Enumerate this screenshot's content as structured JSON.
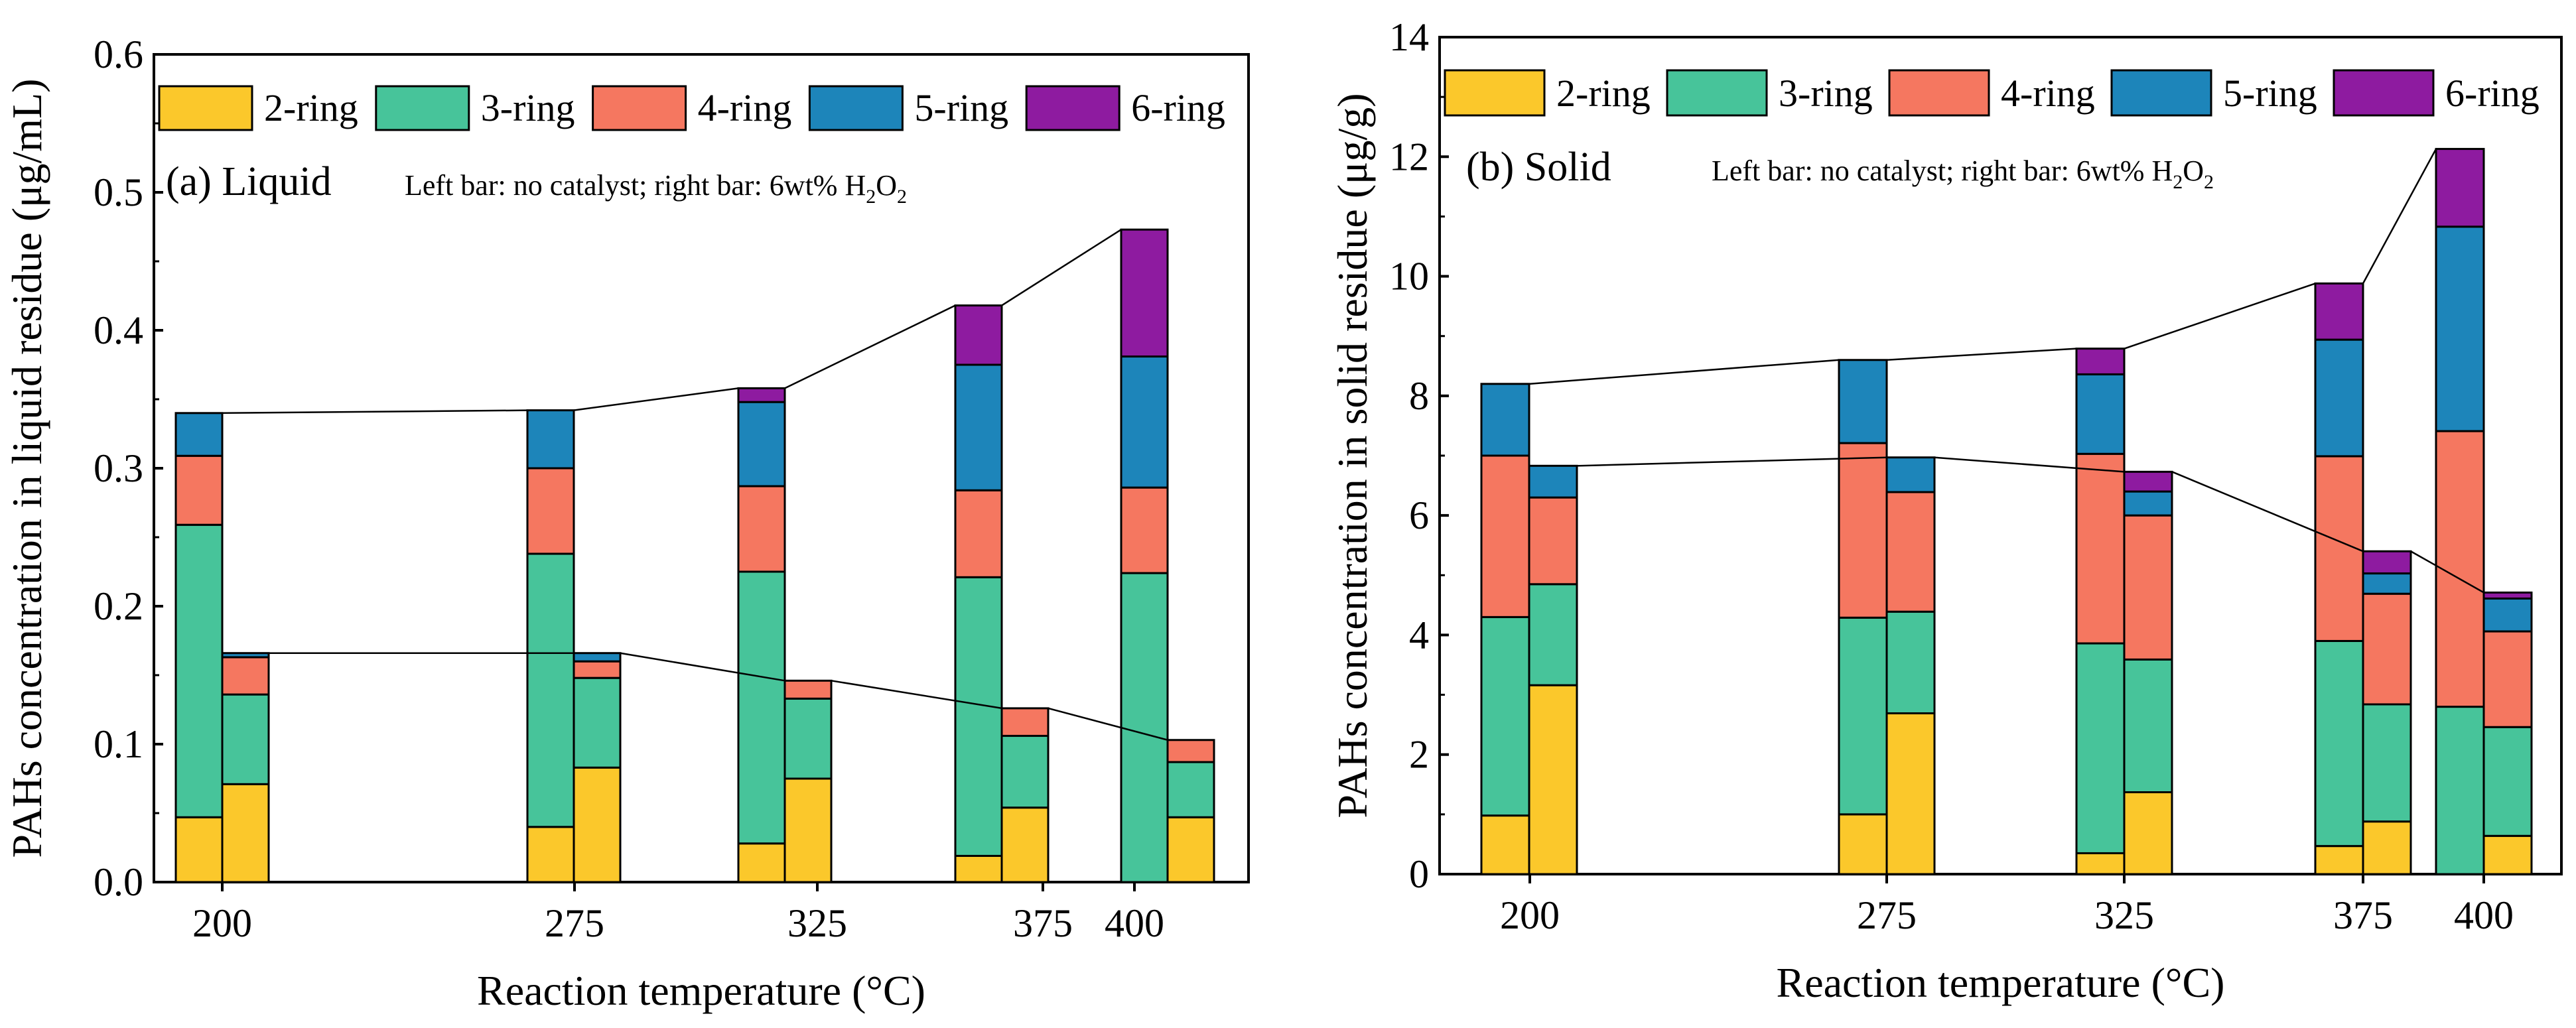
{
  "legend": [
    {
      "key": "r2",
      "label": "2-ring",
      "color": "#FBC82B"
    },
    {
      "key": "r3",
      "label": "3-ring",
      "color": "#47C49A"
    },
    {
      "key": "r4",
      "label": "4-ring",
      "color": "#F57760"
    },
    {
      "key": "r5",
      "label": "5-ring",
      "color": "#1D85BA"
    },
    {
      "key": "r6",
      "label": "6-ring",
      "color": "#8E1BA0"
    }
  ],
  "chart_data": [
    {
      "type": "bar",
      "stacked": true,
      "panel_label": "(a)",
      "panel_name": "Liquid",
      "note_prefix": "Left bar: no catalyst;   right bar: 6wt% H",
      "note_sub1": "2",
      "note_mid": "O",
      "note_sub2": "2",
      "xlabel": "Reaction temperature (°C)",
      "ylabel": "PAHs concentration in liquid residue (μg/mL)",
      "ylim": [
        0,
        0.6
      ],
      "yticks": [
        0.0,
        0.1,
        0.2,
        0.3,
        0.4,
        0.5,
        0.6
      ],
      "ytick_labels": [
        "0.0",
        "0.1",
        "0.2",
        "0.3",
        "0.4",
        "0.5",
        "0.6"
      ],
      "categories": [
        "200",
        "275",
        "325",
        "375",
        "400"
      ],
      "series_order": [
        "r2",
        "r3",
        "r4",
        "r5",
        "r6"
      ],
      "bars": [
        {
          "temperature": "200",
          "condition": "no catalyst",
          "values": [
            0.047,
            0.212,
            0.05,
            0.031,
            0.0
          ]
        },
        {
          "temperature": "200",
          "condition": "6wt% H2O2",
          "values": [
            0.071,
            0.065,
            0.027,
            0.003,
            0.0
          ]
        },
        {
          "temperature": "275",
          "condition": "no catalyst",
          "values": [
            0.04,
            0.198,
            0.062,
            0.042,
            0.0
          ]
        },
        {
          "temperature": "275",
          "condition": "6wt% H2O2",
          "values": [
            0.083,
            0.065,
            0.012,
            0.006,
            0.0
          ]
        },
        {
          "temperature": "325",
          "condition": "no catalyst",
          "values": [
            0.028,
            0.197,
            0.062,
            0.061,
            0.01
          ]
        },
        {
          "temperature": "325",
          "condition": "6wt% H2O2",
          "values": [
            0.075,
            0.058,
            0.013,
            0.0,
            0.0
          ]
        },
        {
          "temperature": "375",
          "condition": "no catalyst",
          "values": [
            0.019,
            0.202,
            0.063,
            0.091,
            0.043
          ]
        },
        {
          "temperature": "375",
          "condition": "6wt% H2O2",
          "values": [
            0.054,
            0.052,
            0.02,
            0.0,
            0.0
          ]
        },
        {
          "temperature": "400",
          "condition": "no catalyst",
          "values": [
            0.0,
            0.224,
            0.062,
            0.095,
            0.092
          ]
        },
        {
          "temperature": "400",
          "condition": "6wt% H2O2",
          "values": [
            0.047,
            0.04,
            0.016,
            0.0,
            0.0
          ]
        }
      ]
    },
    {
      "type": "bar",
      "stacked": true,
      "panel_label": "(b)",
      "panel_name": "Solid",
      "note_prefix": "Left bar: no catalyst;   right bar: 6wt% H",
      "note_sub1": "2",
      "note_mid": "O",
      "note_sub2": "2",
      "xlabel": "Reaction temperature (°C)",
      "ylabel": "PAHs concentration in solid residue (μg/g)",
      "ylim": [
        0,
        14
      ],
      "yticks": [
        0,
        2,
        4,
        6,
        8,
        10,
        12,
        14
      ],
      "ytick_labels": [
        "0",
        "2",
        "4",
        "6",
        "8",
        "10",
        "12",
        "14"
      ],
      "categories": [
        "200",
        "275",
        "325",
        "375",
        "400"
      ],
      "series_order": [
        "r2",
        "r3",
        "r4",
        "r5",
        "r6"
      ],
      "bars": [
        {
          "temperature": "200",
          "condition": "no catalyst",
          "values": [
            0.98,
            3.32,
            2.7,
            1.2,
            0.0
          ]
        },
        {
          "temperature": "200",
          "condition": "6wt% H2O2",
          "values": [
            3.16,
            1.69,
            1.45,
            0.53,
            0.0
          ]
        },
        {
          "temperature": "275",
          "condition": "no catalyst",
          "values": [
            1.0,
            3.29,
            2.92,
            1.39,
            0.0
          ]
        },
        {
          "temperature": "275",
          "condition": "6wt% H2O2",
          "values": [
            2.69,
            1.7,
            2.0,
            0.58,
            0.0
          ]
        },
        {
          "temperature": "325",
          "condition": "no catalyst",
          "values": [
            0.35,
            3.51,
            3.17,
            1.33,
            0.43
          ]
        },
        {
          "temperature": "325",
          "condition": "6wt% H2O2",
          "values": [
            1.37,
            2.22,
            2.41,
            0.4,
            0.33
          ]
        },
        {
          "temperature": "375",
          "condition": "no catalyst",
          "values": [
            0.47,
            3.43,
            3.09,
            1.95,
            0.94
          ]
        },
        {
          "temperature": "375",
          "condition": "6wt% H2O2",
          "values": [
            0.88,
            1.96,
            1.85,
            0.34,
            0.37
          ]
        },
        {
          "temperature": "400",
          "condition": "no catalyst",
          "values": [
            0.0,
            2.8,
            4.61,
            3.42,
            1.3
          ]
        },
        {
          "temperature": "400",
          "condition": "6wt% H2O2",
          "values": [
            0.64,
            1.82,
            1.6,
            0.55,
            0.1
          ]
        }
      ]
    }
  ]
}
